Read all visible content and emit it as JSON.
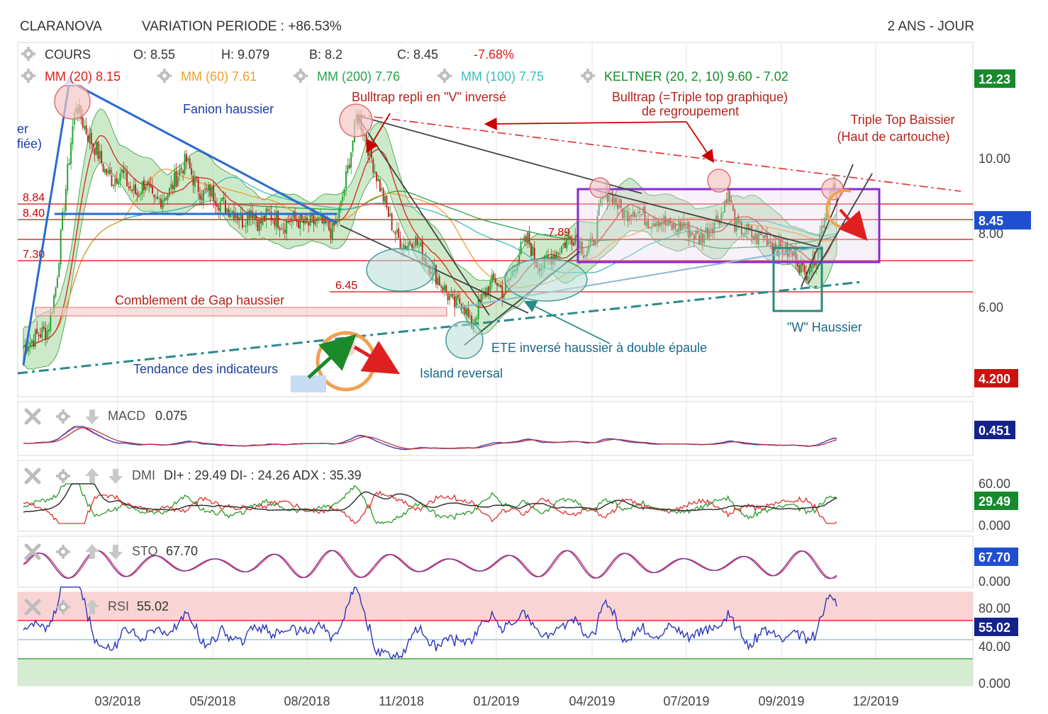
{
  "header": {
    "symbol": "CLARANOVA",
    "variation": "VARIATION PERIODE : +86.53%",
    "period": "2 ANS - JOUR"
  },
  "price_panel": {
    "row1": {
      "label": "COURS",
      "open": "O: 8.55",
      "high": "H: 9.079",
      "low": "B: 8.2",
      "close": "C: 8.45",
      "change": "-7.68%"
    },
    "row2": {
      "mm20": "MM (20)  8.15",
      "mm60": "MM (60)  7.61",
      "mm200": "MM (200)  7.76",
      "mm100": "MM (100)  7.75",
      "keltner": "KELTNER (20, 2, 10)  9.60 - 7.02"
    }
  },
  "colors": {
    "candle_up": "#1fa02a",
    "candle_down": "#b8231b",
    "mm20": "#d42a1e",
    "mm60": "#f0a030",
    "mm200": "#2aa34a",
    "mm100": "#3cbcbc",
    "keltner_fill": "#8fd08a",
    "badge_green": "#178a2d",
    "badge_red": "#cc1111",
    "badge_blue": "#1f4fd0",
    "badge_navy": "#13238a"
  },
  "icons": {
    "settings": "gear-icon",
    "close": "close-icon",
    "up": "arrow-up-icon",
    "down": "arrow-down-icon"
  },
  "badges": {
    "price_high": "12.23",
    "price_last": "8.45",
    "price_low": "4.200",
    "macd": "0.451",
    "dmi": "29.49",
    "sto": "67.70",
    "rsi": "55.02"
  },
  "annotations": {
    "fanion": "Fanion haussier",
    "bulltrap_v": "Bulltrap repli en \"V\" inversé",
    "bulltrap_triple_1": "Bulltrap (=Triple top graphique)",
    "bulltrap_triple_2": "de regroupement",
    "triple_top_1": "Triple Top Baissier",
    "triple_top_2": "(Haut de cartouche)",
    "gap": "Comblement de Gap haussier",
    "tendance": "Tendance des indicateurs",
    "island": "Island reversal",
    "ete": "ETE inversé haussier à double épaule",
    "w_haussier": "\"W\" Haussier",
    "cut_left_1": "er",
    "cut_left_2": "fiée)"
  },
  "levels": {
    "l884": "8.84",
    "l840": "8.40",
    "l730": "7.30",
    "l645": "6.45",
    "l789": "7.89"
  },
  "indicators": {
    "macd": {
      "name": "MACD",
      "value": "0.075"
    },
    "dmi": {
      "name": "DMI",
      "value": "DI+ : 29.49 DI- : 24.26 ADX : 35.39"
    },
    "sto": {
      "name": "STO",
      "value": "67.70"
    },
    "rsi": {
      "name": "RSI",
      "value": "55.02"
    }
  },
  "chart_data": {
    "type": "candlestick",
    "title": "CLARANOVA",
    "period": "2 ANS - JOUR",
    "x_ticks": [
      "03/2018",
      "05/2018",
      "08/2018",
      "11/2018",
      "01/2019",
      "04/2019",
      "07/2019",
      "09/2019",
      "12/2019"
    ],
    "price_axis": {
      "ticks": [
        "10.00",
        "8.00",
        "6.00"
      ],
      "range": [
        4.2,
        12.23
      ]
    },
    "horizontal_levels": [
      8.84,
      8.4,
      7.3,
      6.45,
      7.89
    ],
    "price_path": {
      "x": [
        0,
        0.01,
        0.02,
        0.03,
        0.04,
        0.05,
        0.06,
        0.065,
        0.07,
        0.08,
        0.09,
        0.1,
        0.11,
        0.12,
        0.13,
        0.14,
        0.15,
        0.16,
        0.17,
        0.18,
        0.19,
        0.2,
        0.21,
        0.22,
        0.23,
        0.24,
        0.25,
        0.26,
        0.27,
        0.28,
        0.29,
        0.3,
        0.31,
        0.32,
        0.33,
        0.34,
        0.35,
        0.36,
        0.37,
        0.38,
        0.39,
        0.4,
        0.405,
        0.41,
        0.415,
        0.42,
        0.43,
        0.44,
        0.45,
        0.46,
        0.47,
        0.48,
        0.49,
        0.5,
        0.51,
        0.52,
        0.53,
        0.54,
        0.55,
        0.555,
        0.56,
        0.565,
        0.57,
        0.58,
        0.59,
        0.6,
        0.61,
        0.62,
        0.63,
        0.64,
        0.65,
        0.66,
        0.67,
        0.68,
        0.69,
        0.7,
        0.71,
        0.72,
        0.73,
        0.74,
        0.75,
        0.76,
        0.77,
        0.78,
        0.79,
        0.8,
        0.81,
        0.82,
        0.83,
        0.84,
        0.85,
        0.86,
        0.865,
        0.87,
        0.875,
        0.88,
        0.89,
        0.9,
        0.91,
        0.92,
        0.93,
        0.94,
        0.95,
        0.96,
        0.965,
        0.97,
        0.975,
        0.98,
        0.985,
        0.99,
        0.995,
        1.0
      ],
      "close": [
        4.4,
        4.6,
        4.8,
        4.9,
        6.2,
        8.6,
        10.8,
        11.6,
        11.2,
        10.6,
        10.2,
        9.6,
        9.3,
        9.6,
        9.1,
        8.9,
        9.3,
        8.6,
        8.8,
        9.0,
        9.5,
        9.9,
        9.3,
        8.9,
        9.0,
        8.7,
        8.5,
        8.4,
        8.1,
        8.5,
        8.0,
        8.3,
        8.2,
        8.0,
        8.2,
        8.1,
        8.0,
        8.1,
        8.0,
        7.8,
        8.5,
        9.8,
        10.5,
        11.2,
        11.0,
        10.6,
        9.8,
        9.0,
        8.2,
        7.6,
        7.4,
        7.6,
        7.2,
        6.8,
        6.4,
        6.0,
        5.6,
        5.8,
        5.0,
        5.3,
        5.6,
        5.9,
        6.1,
        6.4,
        6.0,
        6.5,
        7.2,
        7.6,
        6.9,
        6.8,
        7.1,
        7.3,
        7.6,
        7.7,
        7.2,
        7.4,
        8.6,
        9.0,
        8.6,
        8.3,
        8.5,
        8.3,
        8.1,
        8.2,
        8.0,
        7.9,
        8.0,
        7.8,
        7.6,
        7.8,
        8.1,
        8.4,
        9.0,
        8.6,
        8.0,
        7.9,
        7.8,
        7.6,
        7.7,
        7.5,
        7.3,
        7.2,
        7.1,
        6.5,
        6.8,
        6.9,
        7.2,
        7.8,
        8.3,
        8.9,
        9.3,
        8.45
      ]
    },
    "series": [
      {
        "name": "MM (20)",
        "last": 8.15
      },
      {
        "name": "MM (60)",
        "last": 7.61
      },
      {
        "name": "MM (200)",
        "last": 7.76
      },
      {
        "name": "MM (100)",
        "last": 7.75
      },
      {
        "name": "KELTNER (20, 2, 10)",
        "upper": 9.6,
        "lower": 7.02
      }
    ],
    "indicator_axes": {
      "macd": {
        "ticks": [],
        "last": 0.451
      },
      "dmi": {
        "ticks": [
          "60.00",
          "0.000"
        ],
        "last": 29.49
      },
      "sto": {
        "ticks": [
          "0.000"
        ],
        "last": 67.7
      },
      "rsi": {
        "ticks": [
          "80.00",
          "40.00",
          "0.000"
        ],
        "last": 55.02
      }
    }
  }
}
